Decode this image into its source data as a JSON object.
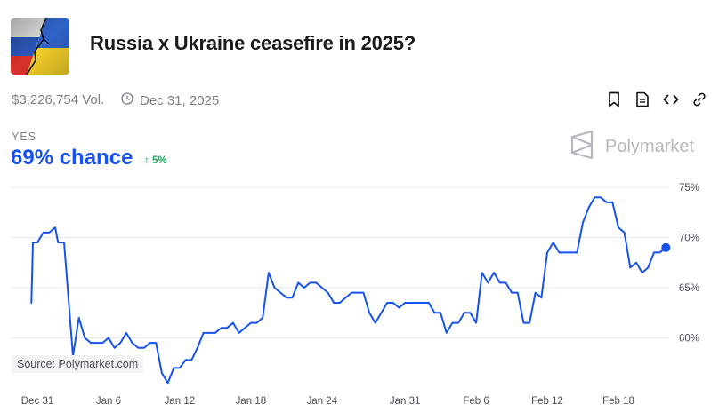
{
  "market": {
    "title": "Russia x Ukraine ceasefire in 2025?",
    "volume": "$3,226,754 Vol.",
    "end_date": "Dec 31, 2025",
    "outcome": "YES",
    "chance": "69% chance",
    "change": "↑ 5%"
  },
  "brand": {
    "name": "Polymarket"
  },
  "source": "Source: Polymarket.com",
  "toolbar": {
    "icons": [
      "bookmark-icon",
      "document-icon",
      "code-embed-icon",
      "link-icon"
    ]
  },
  "colors": {
    "accent": "#1652f0",
    "positive": "#22a45d",
    "muted_text": "#7b7f87"
  },
  "chart_data": {
    "type": "line",
    "title": "",
    "xlabel": "",
    "ylabel": "",
    "ylim": [
      55,
      76
    ],
    "y_ticks": [
      60,
      65,
      70,
      75
    ],
    "y_tick_labels": [
      "60%",
      "65%",
      "70%",
      "75%"
    ],
    "x_tick_labels": [
      "Dec 31",
      "Jan 6",
      "Jan 12",
      "Jan 18",
      "Jan 24",
      "Jan 31",
      "Feb 6",
      "Feb 12",
      "Feb 18"
    ],
    "x_tick_dates": [
      "2024-12-31",
      "2025-01-06",
      "2025-01-12",
      "2025-01-18",
      "2025-01-24",
      "2025-01-31",
      "2025-02-06",
      "2025-02-12",
      "2025-02-18"
    ],
    "grid": true,
    "legend": "none",
    "series": [
      {
        "values": [
          [
            "2024-12-30T12:00",
            63.5
          ],
          [
            "2024-12-30T15:00",
            69.5
          ],
          [
            "2024-12-31T00:00",
            69.5
          ],
          [
            "2024-12-31T12:00",
            70.5
          ],
          [
            "2025-01-01T00:00",
            70.5
          ],
          [
            "2025-01-01T12:00",
            71.0
          ],
          [
            "2025-01-01T18:00",
            69.5
          ],
          [
            "2025-01-02T06:00",
            69.5
          ],
          [
            "2025-01-03T00:00",
            58.2
          ],
          [
            "2025-01-03T12:00",
            62.0
          ],
          [
            "2025-01-04T00:00",
            60.0
          ],
          [
            "2025-01-04T12:00",
            59.5
          ],
          [
            "2025-01-05T12:00",
            59.5
          ],
          [
            "2025-01-06T00:00",
            60.0
          ],
          [
            "2025-01-06T12:00",
            59.0
          ],
          [
            "2025-01-07T00:00",
            59.5
          ],
          [
            "2025-01-07T12:00",
            60.5
          ],
          [
            "2025-01-08T00:00",
            59.5
          ],
          [
            "2025-01-08T12:00",
            59.0
          ],
          [
            "2025-01-09T00:00",
            59.0
          ],
          [
            "2025-01-09T12:00",
            59.5
          ],
          [
            "2025-01-10T00:00",
            59.5
          ],
          [
            "2025-01-10T12:00",
            56.5
          ],
          [
            "2025-01-11T00:00",
            55.5
          ],
          [
            "2025-01-11T12:00",
            57.0
          ],
          [
            "2025-01-12T00:00",
            57.0
          ],
          [
            "2025-01-12T12:00",
            57.8
          ],
          [
            "2025-01-13T00:00",
            57.8
          ],
          [
            "2025-01-13T12:00",
            59.0
          ],
          [
            "2025-01-14T00:00",
            60.5
          ],
          [
            "2025-01-15T00:00",
            60.5
          ],
          [
            "2025-01-15T12:00",
            61.0
          ],
          [
            "2025-01-16T00:00",
            61.0
          ],
          [
            "2025-01-16T12:00",
            61.5
          ],
          [
            "2025-01-17T00:00",
            60.5
          ],
          [
            "2025-01-17T12:00",
            61.0
          ],
          [
            "2025-01-18T00:00",
            61.5
          ],
          [
            "2025-01-18T12:00",
            61.5
          ],
          [
            "2025-01-19T00:00",
            62.0
          ],
          [
            "2025-01-19T12:00",
            66.5
          ],
          [
            "2025-01-20T00:00",
            65.0
          ],
          [
            "2025-01-20T12:00",
            64.5
          ],
          [
            "2025-01-21T00:00",
            64.0
          ],
          [
            "2025-01-21T12:00",
            64.0
          ],
          [
            "2025-01-22T00:00",
            65.5
          ],
          [
            "2025-01-22T12:00",
            65.0
          ],
          [
            "2025-01-23T00:00",
            65.5
          ],
          [
            "2025-01-23T12:00",
            65.5
          ],
          [
            "2025-01-24T12:00",
            64.5
          ],
          [
            "2025-01-25T00:00",
            63.5
          ],
          [
            "2025-01-25T12:00",
            63.5
          ],
          [
            "2025-01-26T00:00",
            64.0
          ],
          [
            "2025-01-26T12:00",
            64.5
          ],
          [
            "2025-01-27T00:00",
            64.5
          ],
          [
            "2025-01-27T12:00",
            64.5
          ],
          [
            "2025-01-28T00:00",
            62.5
          ],
          [
            "2025-01-28T12:00",
            61.5
          ],
          [
            "2025-01-29T00:00",
            62.5
          ],
          [
            "2025-01-29T12:00",
            63.5
          ],
          [
            "2025-01-30T00:00",
            63.5
          ],
          [
            "2025-01-30T12:00",
            63.0
          ],
          [
            "2025-01-31T00:00",
            63.5
          ],
          [
            "2025-02-01T00:00",
            63.5
          ],
          [
            "2025-02-01T12:00",
            63.5
          ],
          [
            "2025-02-02T00:00",
            63.5
          ],
          [
            "2025-02-02T12:00",
            62.5
          ],
          [
            "2025-02-03T00:00",
            62.5
          ],
          [
            "2025-02-03T12:00",
            60.5
          ],
          [
            "2025-02-04T00:00",
            61.5
          ],
          [
            "2025-02-04T12:00",
            61.5
          ],
          [
            "2025-02-05T00:00",
            62.5
          ],
          [
            "2025-02-05T12:00",
            62.5
          ],
          [
            "2025-02-06T00:00",
            61.5
          ],
          [
            "2025-02-06T12:00",
            66.5
          ],
          [
            "2025-02-07T00:00",
            65.5
          ],
          [
            "2025-02-07T12:00",
            66.5
          ],
          [
            "2025-02-08T00:00",
            65.5
          ],
          [
            "2025-02-08T12:00",
            65.5
          ],
          [
            "2025-02-09T00:00",
            64.5
          ],
          [
            "2025-02-09T12:00",
            64.5
          ],
          [
            "2025-02-10T00:00",
            61.5
          ],
          [
            "2025-02-10T12:00",
            61.5
          ],
          [
            "2025-02-11T00:00",
            64.5
          ],
          [
            "2025-02-11T12:00",
            64.0
          ],
          [
            "2025-02-12T00:00",
            68.5
          ],
          [
            "2025-02-12T12:00",
            69.5
          ],
          [
            "2025-02-13T00:00",
            68.5
          ],
          [
            "2025-02-14T12:00",
            68.5
          ],
          [
            "2025-02-15T00:00",
            71.5
          ],
          [
            "2025-02-15T12:00",
            73.0
          ],
          [
            "2025-02-16T00:00",
            74.0
          ],
          [
            "2025-02-16T12:00",
            74.0
          ],
          [
            "2025-02-17T00:00",
            73.5
          ],
          [
            "2025-02-17T12:00",
            73.5
          ],
          [
            "2025-02-18T00:00",
            71.0
          ],
          [
            "2025-02-18T12:00",
            70.5
          ],
          [
            "2025-02-19T00:00",
            67.0
          ],
          [
            "2025-02-19T12:00",
            67.5
          ],
          [
            "2025-02-20T00:00",
            66.5
          ],
          [
            "2025-02-20T12:00",
            67.0
          ],
          [
            "2025-02-21T00:00",
            68.5
          ],
          [
            "2025-02-21T12:00",
            68.5
          ],
          [
            "2025-02-22T00:00",
            69.0
          ]
        ]
      }
    ]
  }
}
